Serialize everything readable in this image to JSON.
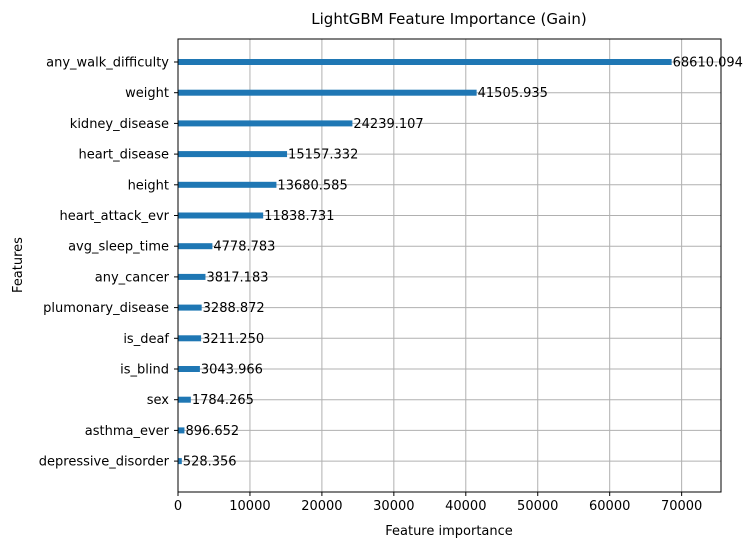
{
  "chart_data": {
    "type": "bar",
    "orientation": "horizontal",
    "title": "LightGBM Feature Importance (Gain)",
    "xlabel": "Feature importance",
    "ylabel": "Features",
    "xlim": [
      0,
      75471
    ],
    "xticks": [
      0,
      10000,
      20000,
      30000,
      40000,
      50000,
      60000,
      70000
    ],
    "grid": true,
    "bar_color": "#1f77b4",
    "categories": [
      "any_walk_difficulty",
      "weight",
      "kidney_disease",
      "heart_disease",
      "height",
      "heart_attack_evr",
      "avg_sleep_time",
      "any_cancer",
      "plumonary_disease",
      "is_deaf",
      "is_blind",
      "sex",
      "asthma_ever",
      "depressive_disorder"
    ],
    "values": [
      68610.094,
      41505.935,
      24239.107,
      15157.332,
      13680.585,
      11838.731,
      4778.783,
      3817.183,
      3288.872,
      3211.25,
      3043.966,
      1784.265,
      896.652,
      528.356
    ],
    "value_labels": [
      "68610.094",
      "41505.935",
      "24239.107",
      "15157.332",
      "13680.585",
      "11838.731",
      "4778.783",
      "3817.183",
      "3288.872",
      "3211.250",
      "3043.966",
      "1784.265",
      "896.652",
      "528.356"
    ]
  }
}
